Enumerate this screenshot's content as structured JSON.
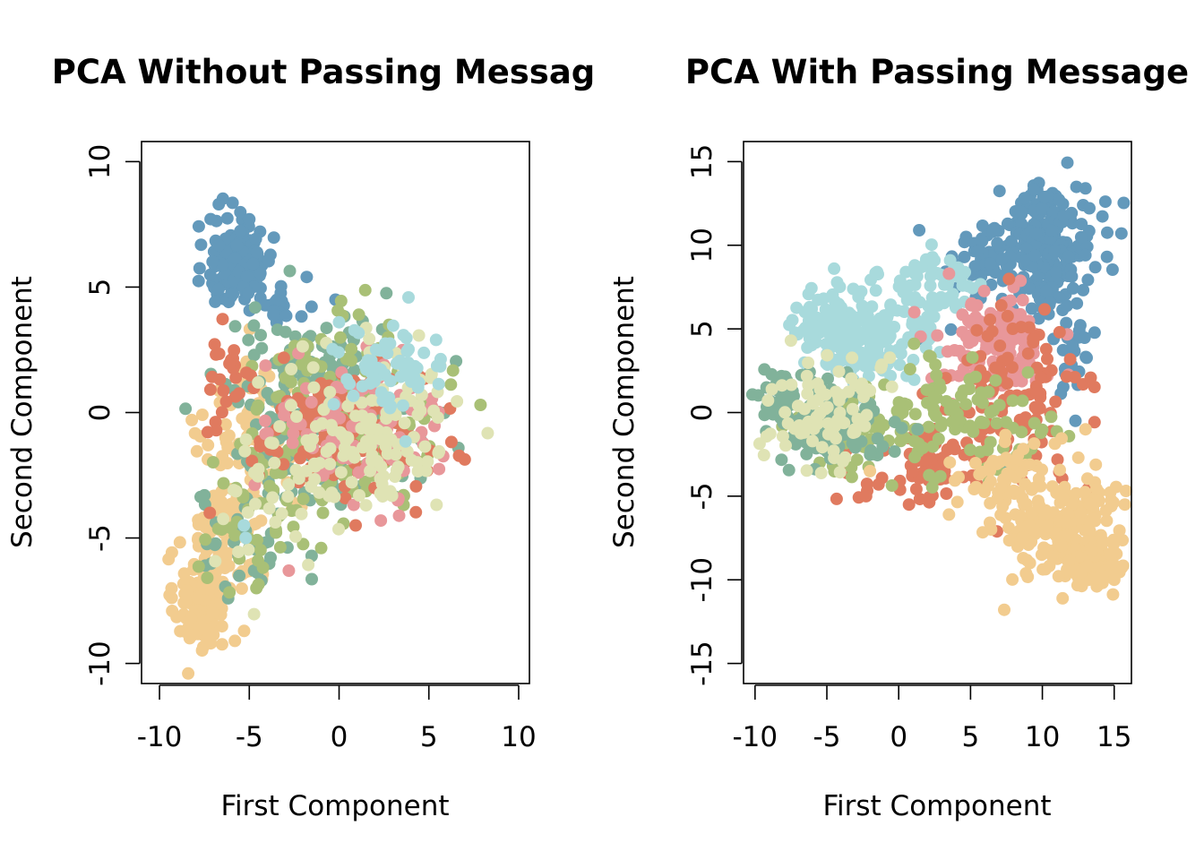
{
  "chart_data": [
    {
      "type": "scatter",
      "title": "PCA Without Passing Messag",
      "xlabel": "First Component",
      "ylabel": "Second Component",
      "xlim": [
        -11,
        10.6
      ],
      "ylim": [
        -10.8,
        10.8
      ],
      "xticks": [
        -10,
        -5,
        0,
        5,
        10
      ],
      "yticks": [
        -10,
        -5,
        0,
        5,
        10
      ],
      "grid": false,
      "legend": "none",
      "series": [
        {
          "color": "#f2cc8f",
          "clusters": [
            {
              "cx": -7.8,
              "cy": -7.6,
              "sx": 0.7,
              "sy": 0.9,
              "n": 120
            },
            {
              "cx": -6.2,
              "cy": -5.0,
              "sx": 1.1,
              "sy": 1.4,
              "n": 90
            },
            {
              "cx": -4.8,
              "cy": -1.0,
              "sx": 1.3,
              "sy": 1.6,
              "n": 80
            }
          ],
          "outliers": [
            [
              -8.4,
              -10.4
            ],
            [
              -5.8,
              -9.1
            ],
            [
              -8.2,
              -0.3
            ],
            [
              -7.3,
              -1.3
            ]
          ]
        },
        {
          "color": "#6399bb",
          "clusters": [
            {
              "cx": -5.5,
              "cy": 6.0,
              "sx": 0.9,
              "sy": 0.9,
              "n": 150
            },
            {
              "cx": -3.2,
              "cy": 4.3,
              "sx": 1.0,
              "sy": 0.4,
              "n": 20
            }
          ],
          "outliers": [
            [
              -6.7,
              8.3
            ],
            [
              -0.2,
              4.5
            ],
            [
              -1.8,
              5.4
            ],
            [
              -5.0,
              7.7
            ]
          ]
        },
        {
          "color": "#81b29a",
          "clusters": [
            {
              "cx": -1.0,
              "cy": 0.2,
              "sx": 2.6,
              "sy": 1.8,
              "n": 200
            },
            {
              "cx": -5.0,
              "cy": -4.5,
              "sx": 1.5,
              "sy": 1.8,
              "n": 40
            }
          ],
          "outliers": [
            [
              -7.5,
              -3.3
            ]
          ]
        },
        {
          "color": "#a9c076",
          "clusters": [
            {
              "cx": 0.5,
              "cy": -0.2,
              "sx": 2.6,
              "sy": 1.8,
              "n": 180
            },
            {
              "cx": -4.5,
              "cy": -4.0,
              "sx": 1.5,
              "sy": 1.6,
              "n": 40
            }
          ],
          "outliers": [
            [
              1.1,
              3.9
            ],
            [
              -0.9,
              -4.0
            ],
            [
              -1.0,
              -5.4
            ]
          ]
        },
        {
          "color": "#e07a5f",
          "clusters": [
            {
              "cx": 0.0,
              "cy": -1.0,
              "sx": 2.4,
              "sy": 1.3,
              "n": 130
            },
            {
              "cx": -6.0,
              "cy": 1.5,
              "sx": 0.6,
              "sy": 1.0,
              "n": 25
            }
          ],
          "outliers": [
            [
              -7.2,
              -4.0
            ]
          ]
        },
        {
          "color": "#e8979a",
          "clusters": [
            {
              "cx": 1.0,
              "cy": -0.5,
              "sx": 2.3,
              "sy": 1.4,
              "n": 110
            }
          ],
          "outliers": [
            [
              -2.8,
              -6.3
            ]
          ]
        },
        {
          "color": "#dfe3b4",
          "clusters": [
            {
              "cx": 2.0,
              "cy": -0.8,
              "sx": 2.4,
              "sy": 1.6,
              "n": 130
            },
            {
              "cx": -4.0,
              "cy": -3.5,
              "sx": 1.5,
              "sy": 1.5,
              "n": 30
            }
          ],
          "outliers": [
            [
              1.5,
              -3.7
            ],
            [
              5.5,
              -0.2
            ]
          ]
        },
        {
          "color": "#a8dadc",
          "clusters": [
            {
              "cx": 2.8,
              "cy": 1.6,
              "sx": 1.6,
              "sy": 0.9,
              "n": 60
            }
          ],
          "outliers": [
            [
              0.0,
              3.6
            ],
            [
              -5.3,
              -4.5
            ],
            [
              -5.2,
              -5.0
            ]
          ]
        }
      ]
    },
    {
      "type": "scatter",
      "title": "PCA With Passing Message",
      "xlabel": "First Component",
      "ylabel": "Second Component",
      "xlim": [
        -10.8,
        16.2
      ],
      "ylim": [
        -16.2,
        16.2
      ],
      "xticks": [
        -10,
        -5,
        0,
        5,
        10,
        15
      ],
      "yticks": [
        -15,
        -10,
        -5,
        0,
        5,
        10,
        15
      ],
      "grid": false,
      "legend": "none",
      "series": [
        {
          "color": "#6399bb",
          "clusters": [
            {
              "cx": 10.3,
              "cy": 10.0,
              "sx": 1.7,
              "sy": 1.8,
              "n": 220
            },
            {
              "cx": 5.5,
              "cy": 9.0,
              "sx": 1.5,
              "sy": 1.2,
              "n": 40
            },
            {
              "cx": 12.0,
              "cy": 4.0,
              "sx": 0.7,
              "sy": 1.8,
              "n": 25
            }
          ],
          "outliers": [
            [
              12.3,
              -0.5
            ],
            [
              13.0,
              13.4
            ],
            [
              1.5,
              4.4
            ],
            [
              -4.0,
              6.1
            ]
          ]
        },
        {
          "color": "#a8dadc",
          "clusters": [
            {
              "cx": -3.0,
              "cy": 4.5,
              "sx": 2.5,
              "sy": 1.6,
              "n": 200
            },
            {
              "cx": 2.5,
              "cy": 7.5,
              "sx": 1.8,
              "sy": 1.2,
              "n": 60
            }
          ],
          "outliers": [
            [
              -1.5,
              8.4
            ],
            [
              0.5,
              8.4
            ],
            [
              -6.2,
              6.3
            ]
          ]
        },
        {
          "color": "#e8979a",
          "clusters": [
            {
              "cx": 6.5,
              "cy": 4.0,
              "sx": 2.0,
              "sy": 1.5,
              "n": 120
            }
          ],
          "outliers": [
            [
              3.5,
              8.3
            ],
            [
              8.0,
              7.5
            ]
          ]
        },
        {
          "color": "#e07a5f",
          "clusters": [
            {
              "cx": 8.0,
              "cy": 1.0,
              "sx": 2.4,
              "sy": 2.5,
              "n": 110
            },
            {
              "cx": 2.0,
              "cy": -3.5,
              "sx": 2.5,
              "sy": 1.3,
              "n": 60
            }
          ],
          "outliers": [
            [
              -1.4,
              -4.3
            ],
            [
              11.2,
              4.8
            ]
          ]
        },
        {
          "color": "#a9c076",
          "clusters": [
            {
              "cx": 5.0,
              "cy": -0.5,
              "sx": 3.0,
              "sy": 1.8,
              "n": 100
            },
            {
              "cx": -3.0,
              "cy": -1.0,
              "sx": 2.0,
              "sy": 1.3,
              "n": 50
            }
          ],
          "outliers": [
            [
              -5.5,
              -3.0
            ],
            [
              9.0,
              2.4
            ]
          ]
        },
        {
          "color": "#81b29a",
          "clusters": [
            {
              "cx": -5.0,
              "cy": -0.5,
              "sx": 2.0,
              "sy": 1.2,
              "n": 130
            },
            {
              "cx": -8.2,
              "cy": 1.0,
              "sx": 0.6,
              "sy": 0.8,
              "n": 30
            }
          ],
          "outliers": [
            [
              -9.2,
              1.5
            ],
            [
              7.5,
              -3.0
            ]
          ]
        },
        {
          "color": "#dfe3b4",
          "clusters": [
            {
              "cx": -5.0,
              "cy": 0.0,
              "sx": 2.0,
              "sy": 1.6,
              "n": 90
            }
          ],
          "outliers": [
            [
              -7.5,
              4.3
            ],
            [
              -2.0,
              1.3
            ]
          ]
        },
        {
          "color": "#f2cc8f",
          "clusters": [
            {
              "cx": 11.0,
              "cy": -6.5,
              "sx": 2.2,
              "sy": 1.8,
              "n": 200
            },
            {
              "cx": 13.5,
              "cy": -9.0,
              "sx": 1.0,
              "sy": 0.8,
              "n": 80
            },
            {
              "cx": 7.0,
              "cy": -3.5,
              "sx": 1.5,
              "sy": 1.0,
              "n": 40
            }
          ],
          "outliers": [
            [
              15.0,
              -10.0
            ],
            [
              14.8,
              -5.6
            ],
            [
              3.5,
              -6.1
            ],
            [
              -2.0,
              -3.5
            ],
            [
              12.5,
              -2.7
            ],
            [
              13.0,
              -1.0
            ]
          ]
        }
      ]
    }
  ]
}
